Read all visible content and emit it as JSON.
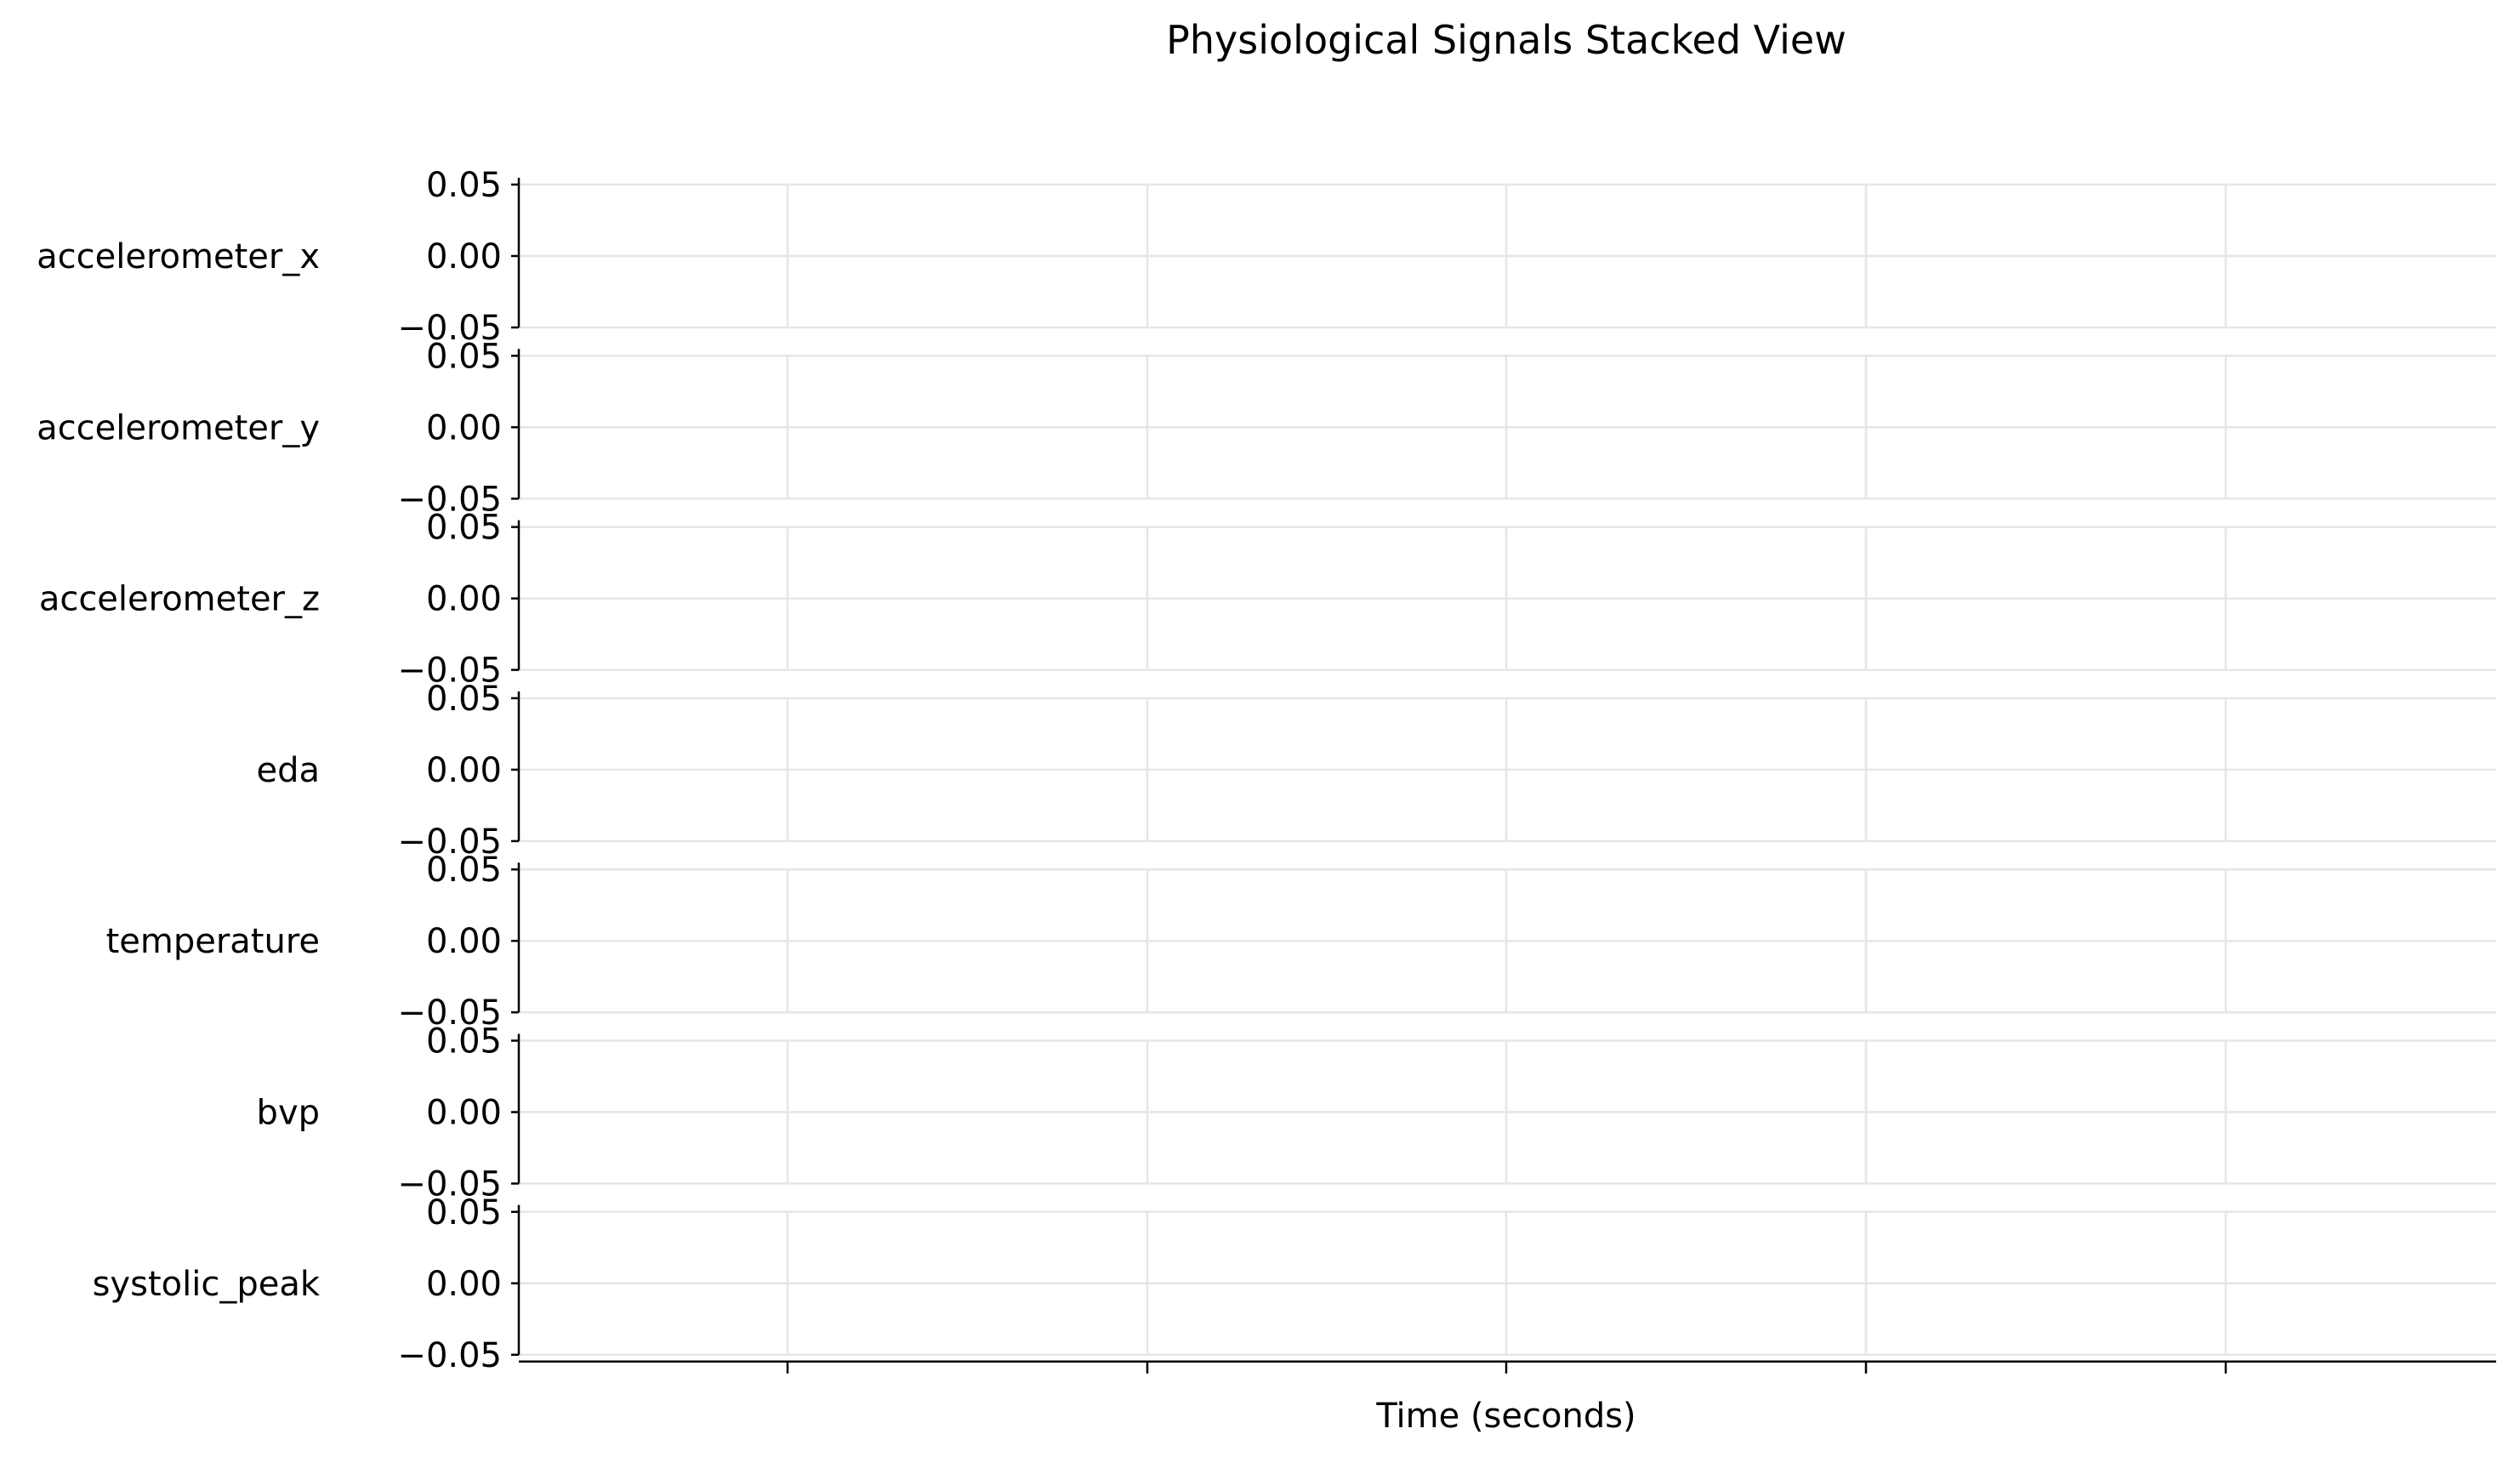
{
  "chart_data": {
    "type": "line",
    "title": "Physiological Signals Stacked View",
    "xlabel": "Time (seconds)",
    "x_tick_count": 5,
    "x_tick_labels": [
      "",
      "",
      "",
      "",
      ""
    ],
    "ylim": [
      -0.05,
      0.05
    ],
    "y_ticks": [
      0.05,
      0.0,
      -0.05
    ],
    "y_tick_labels": [
      "0.05",
      "0.00",
      "−0.05"
    ],
    "grid": true,
    "series": [
      {
        "name": "accelerometer_x",
        "x": [],
        "values": []
      },
      {
        "name": "accelerometer_y",
        "x": [],
        "values": []
      },
      {
        "name": "accelerometer_z",
        "x": [],
        "values": []
      },
      {
        "name": "eda",
        "x": [],
        "values": []
      },
      {
        "name": "temperature",
        "x": [],
        "values": []
      },
      {
        "name": "bvp",
        "x": [],
        "values": []
      },
      {
        "name": "systolic_peak",
        "x": [],
        "values": []
      }
    ]
  },
  "colors": {
    "grid": "#e6e6e6",
    "axis": "#000000",
    "background": "#ffffff"
  }
}
